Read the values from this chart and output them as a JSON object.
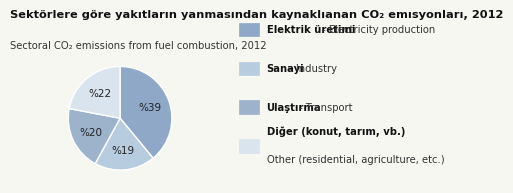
{
  "title": "Sektörlere göre yakıtların yanmasından kaynaklıanan CO₂ emısyonları, 2012",
  "subtitle": "Sectoral CO₂ emissions from fuel combustion, 2012",
  "values": [
    39,
    19,
    20,
    22
  ],
  "pct_labels": [
    "%39",
    "%19",
    "%20",
    "%22"
  ],
  "colors": [
    "#8fa8c8",
    "#b8cce0",
    "#9db3cc",
    "#d9e4ef"
  ],
  "legend_bold": [
    "Elektrik üretimi",
    "Sanayi",
    "Ulaştırma",
    "Diğer (konut, tarım, vb.)"
  ],
  "legend_normal": [
    " - Electricity production",
    " - Industry",
    " - Transport",
    "Other (residential, agriculture, etc.)"
  ],
  "bg_color": "#f7f7f2",
  "startangle": 90,
  "counterclock": false
}
